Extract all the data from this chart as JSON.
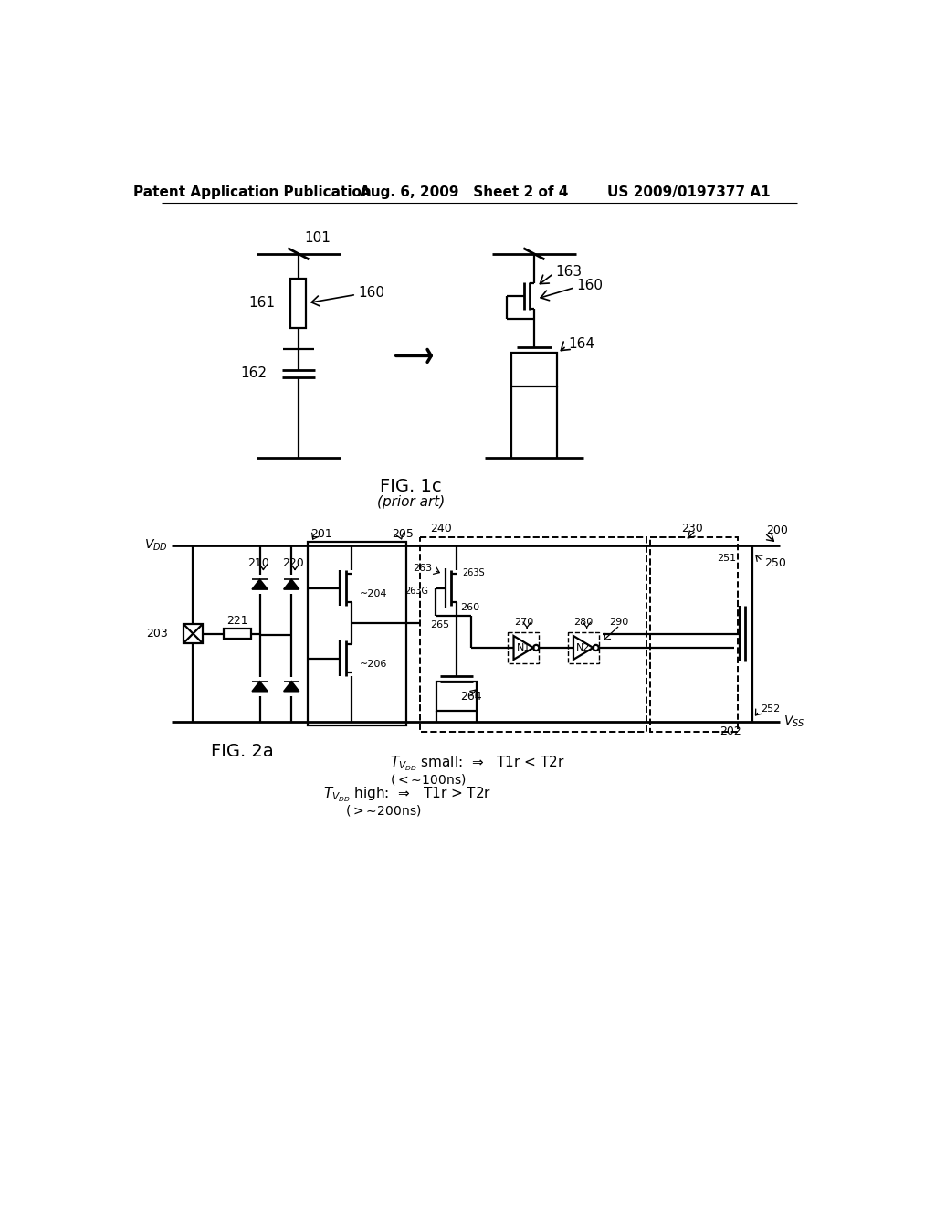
{
  "header_left": "Patent Application Publication",
  "header_mid": "Aug. 6, 2009   Sheet 2 of 4",
  "header_right": "US 2009/0197377 A1",
  "fig1c_label": "FIG. 1c",
  "fig1c_sub": "(prior art)",
  "fig2a_label": "FIG. 2a",
  "bg_color": "#ffffff"
}
